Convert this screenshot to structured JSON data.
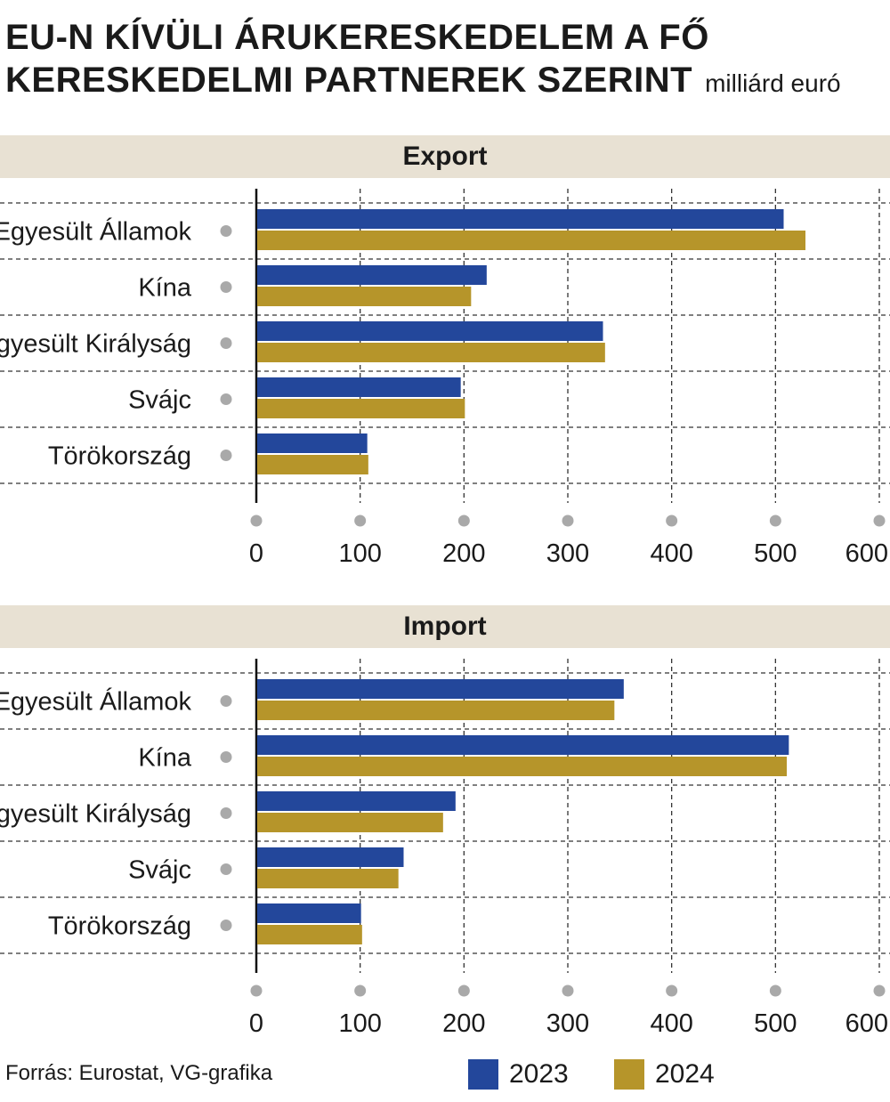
{
  "title": {
    "line1": "EU-N KÍVÜLI ÁRUKERESKEDELEM A FŐ",
    "line2": "KERESKEDELMI PARTNEREK SZERINT",
    "unit": "milliárd euró"
  },
  "colors": {
    "2023": "#23479b",
    "2024": "#b6952a",
    "band": "#e8e1d3"
  },
  "legend": [
    {
      "label": "2023",
      "color": "#23479b"
    },
    {
      "label": "2024",
      "color": "#b6952a"
    }
  ],
  "source": "Forrás: Eurostat, VG-grafika",
  "chart_data": [
    {
      "type": "bar",
      "title": "Export",
      "categories": [
        "Egyesült Államok",
        "Kína",
        "Egyesült Királyság",
        "Svájc",
        "Törökország"
      ],
      "series": [
        {
          "name": "2023",
          "values": [
            507,
            221,
            333,
            196,
            106
          ]
        },
        {
          "name": "2024",
          "values": [
            528,
            206,
            335,
            200,
            107
          ]
        }
      ],
      "xlim": [
        0,
        600
      ],
      "xticks": [
        "0",
        "100",
        "200",
        "300",
        "400",
        "500",
        "600"
      ],
      "grid": true
    },
    {
      "type": "bar",
      "title": "Import",
      "categories": [
        "Egyesült Államok",
        "Kína",
        "Egyesült Királyság",
        "Svájc",
        "Törökország"
      ],
      "series": [
        {
          "name": "2023",
          "values": [
            353,
            512,
            191,
            141,
            100
          ]
        },
        {
          "name": "2024",
          "values": [
            344,
            510,
            179,
            136,
            101
          ]
        }
      ],
      "xlim": [
        0,
        600
      ],
      "xticks": [
        "0",
        "100",
        "200",
        "300",
        "400",
        "500",
        "600"
      ],
      "grid": true
    }
  ]
}
